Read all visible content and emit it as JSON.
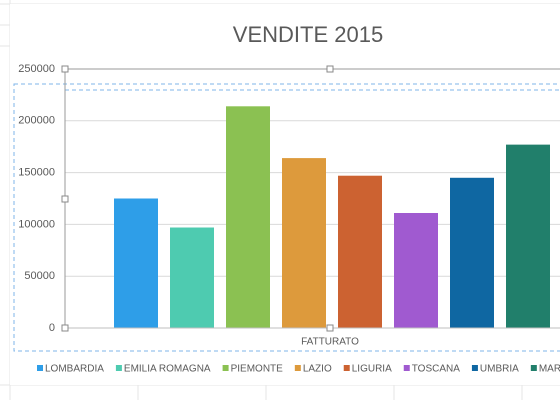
{
  "chart_data": {
    "type": "bar",
    "title": "VENDITE 2015",
    "categories": [
      "FATTURATO"
    ],
    "series": [
      {
        "name": "LOMBARDIA",
        "color": "#2e9ee8",
        "values": [
          125000
        ]
      },
      {
        "name": "EMILIA ROMAGNA",
        "color": "#4ecbb0",
        "values": [
          97000
        ]
      },
      {
        "name": "PIEMONTE",
        "color": "#8bc152",
        "values": [
          214000
        ]
      },
      {
        "name": "LAZIO",
        "color": "#dd9a3c",
        "values": [
          164000
        ]
      },
      {
        "name": "LIGURIA",
        "color": "#cc6231",
        "values": [
          147000
        ]
      },
      {
        "name": "TOSCANA",
        "color": "#a05ad0",
        "values": [
          111000
        ]
      },
      {
        "name": "UMBRIA",
        "color": "#0f67a2",
        "values": [
          145000
        ]
      },
      {
        "name": "MARCHE",
        "color": "#217f6b",
        "values": [
          177000
        ]
      }
    ],
    "ylim": [
      0,
      250000
    ],
    "yticks": [
      0,
      50000,
      100000,
      150000,
      200000,
      250000
    ],
    "grid": true
  }
}
